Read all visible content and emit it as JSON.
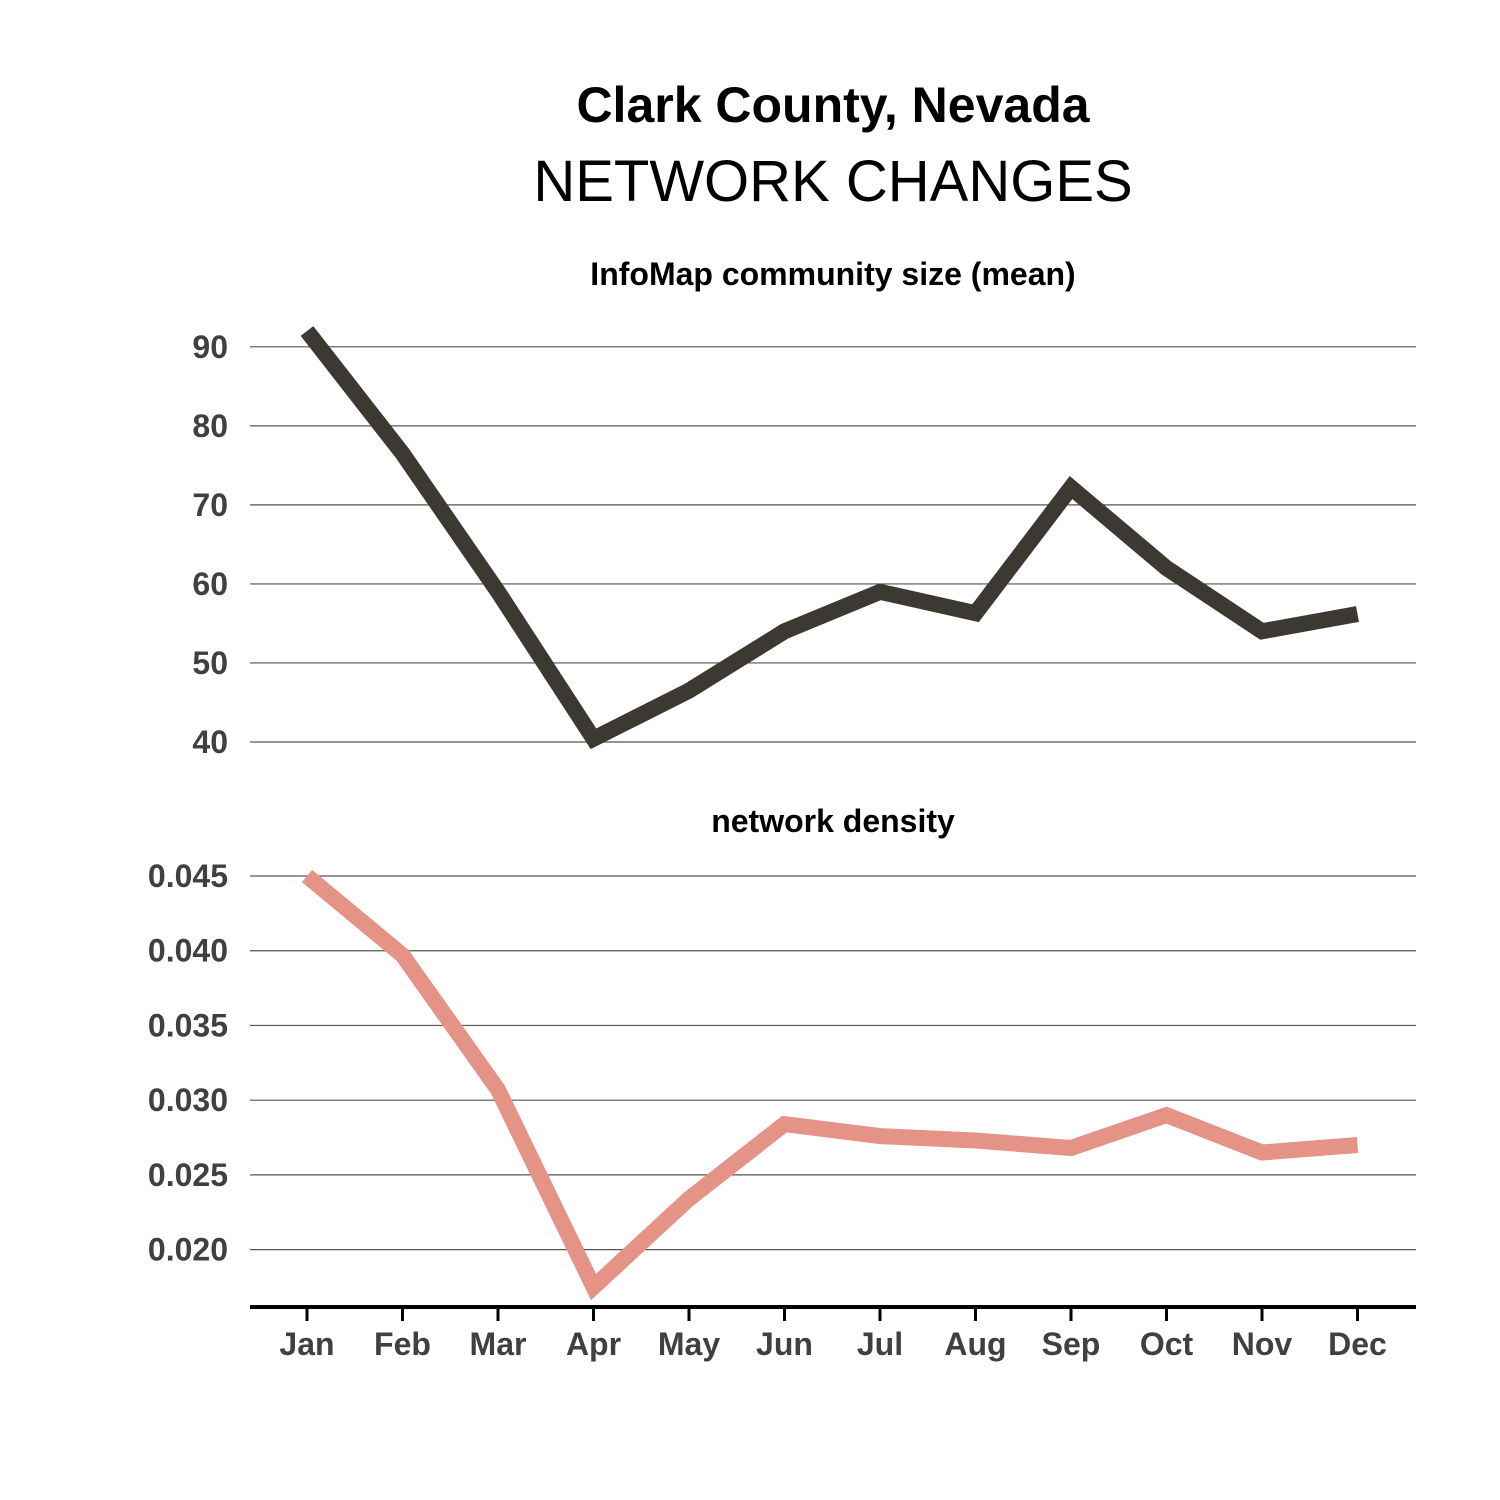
{
  "titles": {
    "main": "Clark County, Nevada",
    "sub": "NETWORK CHANGES"
  },
  "chart_data": [
    {
      "type": "line",
      "title": "InfoMap community size (mean)",
      "categories": [
        "Jan",
        "Feb",
        "Mar",
        "Apr",
        "May",
        "Jun",
        "Jul",
        "Aug",
        "Sep",
        "Oct",
        "Nov",
        "Dec"
      ],
      "values": [
        92,
        76.5,
        59,
        40.4,
        46.5,
        54,
        59,
        56.3,
        72.2,
        62,
        54,
        56.2
      ],
      "yticks": [
        40,
        50,
        60,
        70,
        80,
        90
      ],
      "ytick_labels": [
        "40",
        "50",
        "60",
        "70",
        "80",
        "90"
      ],
      "ylim": [
        40,
        92
      ],
      "color": "#3b3932",
      "grid": "horizontal",
      "legend": "none"
    },
    {
      "type": "line",
      "title": "network density",
      "categories": [
        "Jan",
        "Feb",
        "Mar",
        "Apr",
        "May",
        "Jun",
        "Jul",
        "Aug",
        "Sep",
        "Oct",
        "Nov",
        "Dec"
      ],
      "values": [
        0.045,
        0.0397,
        0.0307,
        0.0175,
        0.0234,
        0.0284,
        0.0276,
        0.0273,
        0.0268,
        0.029,
        0.0265,
        0.027
      ],
      "yticks": [
        0.02,
        0.025,
        0.03,
        0.035,
        0.04,
        0.045
      ],
      "ytick_labels": [
        "0.020",
        "0.025",
        "0.030",
        "0.035",
        "0.040",
        "0.045"
      ],
      "ylim": [
        0.0175,
        0.045
      ],
      "color": "#e69387",
      "grid": "horizontal",
      "legend": "none"
    }
  ]
}
